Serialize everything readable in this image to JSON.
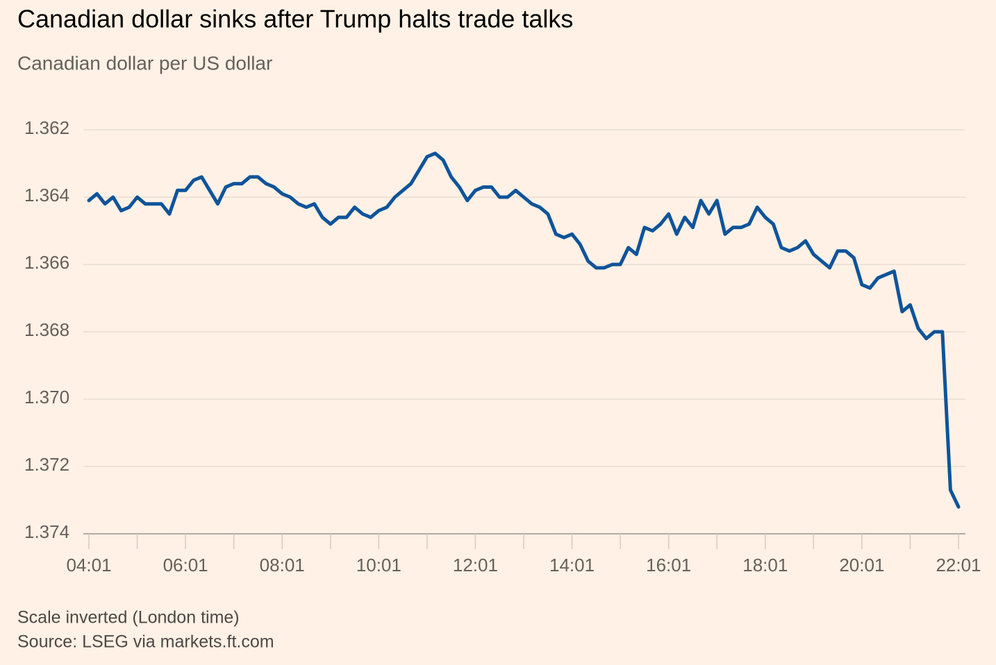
{
  "chart_data": {
    "type": "line",
    "title": "Canadian dollar sinks after Trump halts trade talks",
    "subtitle": "Canadian dollar per US dollar",
    "notes": [
      "Scale inverted (London time)",
      "Source: LSEG via markets.ft.com"
    ],
    "color": "#0f5499",
    "inverted": true,
    "grid": true,
    "ylim": [
      1.362,
      1.374
    ],
    "yticks": [
      1.362,
      1.364,
      1.366,
      1.368,
      {
        "value": 1.37,
        "label": "1.370"
      },
      1.372,
      1.374
    ],
    "categories": [
      "04:01",
      null,
      null,
      null,
      null,
      null,
      null,
      null,
      null,
      null,
      null,
      null,
      "06:01",
      null,
      null,
      null,
      null,
      null,
      null,
      null,
      null,
      null,
      null,
      null,
      "08:01",
      null,
      null,
      null,
      null,
      null,
      null,
      null,
      null,
      null,
      null,
      null,
      "10:01",
      null,
      null,
      null,
      null,
      null,
      null,
      null,
      null,
      null,
      null,
      null,
      "12:01",
      null,
      null,
      null,
      null,
      null,
      null,
      null,
      null,
      null,
      null,
      null,
      "14:01",
      null,
      null,
      null,
      null,
      null,
      null,
      null,
      null,
      null,
      null,
      null,
      "16:01",
      null,
      null,
      null,
      null,
      null,
      null,
      null,
      null,
      null,
      null,
      null,
      "18:01",
      null,
      null,
      null,
      null,
      null,
      null,
      null,
      null,
      null,
      null,
      null,
      "20:01",
      null,
      null,
      null,
      null,
      null,
      null,
      null,
      null,
      null,
      null,
      null,
      "22:01"
    ],
    "values": [
      1.3641,
      1.3639,
      1.3642,
      1.364,
      1.3644,
      1.3643,
      1.364,
      1.3642,
      1.3642,
      1.3642,
      1.3645,
      1.3638,
      1.3638,
      1.3635,
      1.3634,
      1.3638,
      1.3642,
      1.3637,
      1.3636,
      1.3636,
      1.3634,
      1.3634,
      1.3636,
      1.3637,
      1.3639,
      1.364,
      1.3642,
      1.3643,
      1.3642,
      1.3646,
      1.3648,
      1.3646,
      1.3646,
      1.3643,
      1.3645,
      1.3646,
      1.3644,
      1.3643,
      1.364,
      1.3638,
      1.3636,
      1.3632,
      1.3628,
      1.3627,
      1.3629,
      1.3634,
      1.3637,
      1.3641,
      1.3638,
      1.3637,
      1.3637,
      1.364,
      1.364,
      1.3638,
      1.364,
      1.3642,
      1.3643,
      1.3645,
      1.3651,
      1.3652,
      1.3651,
      1.3654,
      1.3659,
      1.3661,
      1.3661,
      1.366,
      1.366,
      1.3655,
      1.3657,
      1.3649,
      1.365,
      1.3648,
      1.3645,
      1.3651,
      1.3646,
      1.3649,
      1.3641,
      1.3645,
      1.3641,
      1.3651,
      1.3649,
      1.3649,
      1.3648,
      1.3643,
      1.3646,
      1.3648,
      1.3655,
      1.3656,
      1.3655,
      1.3653,
      1.3657,
      1.3659,
      1.3661,
      1.3656,
      1.3656,
      1.3658,
      1.3666,
      1.3667,
      1.3664,
      1.3663,
      1.3662,
      1.3674,
      1.3672,
      1.3679,
      1.3682,
      1.368,
      1.368,
      1.3727,
      1.3732
    ]
  }
}
